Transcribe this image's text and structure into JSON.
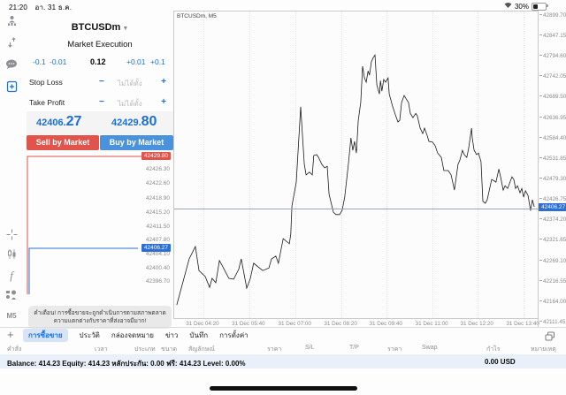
{
  "status_bar": {
    "time": "21:20",
    "date": "อา. 31 ธ.ค.",
    "battery_percent": "30%"
  },
  "sidebar": {
    "timeframe": "M5"
  },
  "trade_panel": {
    "symbol": "BTCUSDm",
    "execution_mode": "Market Execution",
    "volume": {
      "dec_big": "-0.1",
      "dec_small": "-0.01",
      "value": "0.12",
      "inc_small": "+0.01",
      "inc_big": "+0.1"
    },
    "stop_loss": {
      "label": "Stop Loss",
      "minus": "−",
      "placeholder": "ไม่ได้ตั้ง",
      "plus": "+"
    },
    "take_profit": {
      "label": "Take Profit",
      "minus": "−",
      "placeholder": "ไม่ได้ตั้ง",
      "plus": "+"
    },
    "sell_price": {
      "int": "42406.",
      "dec": "27"
    },
    "buy_price": {
      "int": "42429.",
      "dec": "80"
    },
    "sell_button": "Sell by Market",
    "buy_button": "Buy by Market",
    "warning_line1": "คำเตือน! การซื้อขายจะถูกดำเนินการตามสภาพตลาด",
    "warning_line2": "ความแตกต่างกับราคาที่ส่งอาจมีมาก!"
  },
  "tick_chart": {
    "scale": [
      {
        "label": "42429.80",
        "type": "ask"
      },
      {
        "label": "42426.30"
      },
      {
        "label": "42422.60"
      },
      {
        "label": "42418.90"
      },
      {
        "label": "42415.20"
      },
      {
        "label": "42411.50"
      },
      {
        "label": "42407.80"
      },
      {
        "label": "42406.27",
        "type": "bid"
      },
      {
        "label": "42404.10"
      },
      {
        "label": "42400.40"
      },
      {
        "label": "42396.70"
      }
    ],
    "ask_color": "#e0544b",
    "bid_color": "#2b6fd4"
  },
  "main_chart": {
    "title": "BTCUSDm, M5",
    "current_price": "42406.27",
    "y_axis_labels": [
      "42899.70",
      "42847.15",
      "42794.60",
      "42742.05",
      "42689.50",
      "42636.95",
      "42584.40",
      "42531.85",
      "42479.30",
      "42426.75",
      "42374.20",
      "42321.65",
      "42269.10",
      "42216.55",
      "42164.00",
      "42111.45"
    ],
    "x_axis_labels": [
      "31 Dec 04:20",
      "31 Dec 05:40",
      "31 Dec 07:00",
      "31 Dec 08:20",
      "31 Dec 09:40",
      "31 Dec 11:00",
      "31 Dec 12:20",
      "31 Dec 13:40"
    ],
    "chart_data": {
      "type": "line",
      "title": "BTCUSDm M5 price",
      "ylim": [
        42111.45,
        42899.7
      ],
      "current_price": 42406.27,
      "points": [
        [
          0.007,
          42158
        ],
        [
          0.041,
          42276
        ],
        [
          0.058,
          42308
        ],
        [
          0.068,
          42246
        ],
        [
          0.085,
          42231
        ],
        [
          0.097,
          42203
        ],
        [
          0.104,
          42226
        ],
        [
          0.114,
          42215
        ],
        [
          0.124,
          42272
        ],
        [
          0.131,
          42260
        ],
        [
          0.15,
          42226
        ],
        [
          0.163,
          42224
        ],
        [
          0.177,
          42249
        ],
        [
          0.184,
          42276
        ],
        [
          0.199,
          42201
        ],
        [
          0.209,
          42226
        ],
        [
          0.218,
          42265
        ],
        [
          0.243,
          42246
        ],
        [
          0.26,
          42253
        ],
        [
          0.267,
          42276
        ],
        [
          0.279,
          42283
        ],
        [
          0.286,
          42265
        ],
        [
          0.299,
          42328
        ],
        [
          0.316,
          42315
        ],
        [
          0.32,
          42340
        ],
        [
          0.323,
          42412
        ],
        [
          0.335,
          42473
        ],
        [
          0.347,
          42667
        ],
        [
          0.352,
          42594
        ],
        [
          0.357,
          42519
        ],
        [
          0.362,
          42492
        ],
        [
          0.371,
          42499
        ],
        [
          0.379,
          42492
        ],
        [
          0.383,
          42542
        ],
        [
          0.391,
          42544
        ],
        [
          0.396,
          42537
        ],
        [
          0.405,
          42519
        ],
        [
          0.413,
          42510
        ],
        [
          0.42,
          42514
        ],
        [
          0.425,
          42442
        ],
        [
          0.437,
          42396
        ],
        [
          0.444,
          42390
        ],
        [
          0.454,
          42390
        ],
        [
          0.461,
          42401
        ],
        [
          0.468,
          42435
        ],
        [
          0.478,
          42519
        ],
        [
          0.485,
          42587
        ],
        [
          0.49,
          42555
        ],
        [
          0.495,
          42578
        ],
        [
          0.5,
          42548
        ],
        [
          0.505,
          42632
        ],
        [
          0.512,
          42678
        ],
        [
          0.517,
          42771
        ],
        [
          0.522,
          42741
        ],
        [
          0.527,
          42730
        ],
        [
          0.532,
          42759
        ],
        [
          0.536,
          42748
        ],
        [
          0.541,
          42782
        ],
        [
          0.546,
          42793
        ],
        [
          0.551,
          42800
        ],
        [
          0.556,
          42723
        ],
        [
          0.563,
          42700
        ],
        [
          0.566,
          42734
        ],
        [
          0.57,
          42707
        ],
        [
          0.575,
          42737
        ],
        [
          0.58,
          42730
        ],
        [
          0.587,
          42741
        ],
        [
          0.59,
          42700
        ],
        [
          0.599,
          42669
        ],
        [
          0.607,
          42646
        ],
        [
          0.614,
          42628
        ],
        [
          0.619,
          42632
        ],
        [
          0.624,
          42678
        ],
        [
          0.631,
          42696
        ],
        [
          0.638,
          42685
        ],
        [
          0.643,
          42678
        ],
        [
          0.648,
          42650
        ],
        [
          0.655,
          42639
        ],
        [
          0.663,
          42650
        ],
        [
          0.667,
          42644
        ],
        [
          0.675,
          42612
        ],
        [
          0.682,
          42598
        ],
        [
          0.687,
          42612
        ],
        [
          0.694,
          42594
        ],
        [
          0.699,
          42578
        ],
        [
          0.709,
          42576
        ],
        [
          0.716,
          42567
        ],
        [
          0.723,
          42548
        ],
        [
          0.733,
          42537
        ],
        [
          0.74,
          42503
        ],
        [
          0.752,
          42503
        ],
        [
          0.76,
          42492
        ],
        [
          0.769,
          42453
        ],
        [
          0.772,
          42473
        ],
        [
          0.779,
          42519
        ],
        [
          0.784,
          42530
        ],
        [
          0.791,
          42555
        ],
        [
          0.796,
          42544
        ],
        [
          0.803,
          42537
        ],
        [
          0.808,
          42560
        ],
        [
          0.816,
          42612
        ],
        [
          0.818,
          42587
        ],
        [
          0.823,
          42555
        ],
        [
          0.83,
          42544
        ],
        [
          0.835,
          42548
        ],
        [
          0.842,
          42526
        ],
        [
          0.847,
          42424
        ],
        [
          0.854,
          42419
        ],
        [
          0.859,
          42428
        ],
        [
          0.867,
          42462
        ],
        [
          0.871,
          42480
        ],
        [
          0.879,
          42476
        ],
        [
          0.883,
          42473
        ],
        [
          0.891,
          42507
        ],
        [
          0.896,
          42485
        ],
        [
          0.903,
          42453
        ],
        [
          0.908,
          42464
        ],
        [
          0.915,
          42457
        ],
        [
          0.92,
          42469
        ],
        [
          0.927,
          42487
        ],
        [
          0.932,
          42480
        ],
        [
          0.937,
          42457
        ],
        [
          0.942,
          42464
        ],
        [
          0.949,
          42446
        ],
        [
          0.954,
          42457
        ],
        [
          0.959,
          42435
        ],
        [
          0.964,
          42451
        ],
        [
          0.971,
          42439
        ],
        [
          0.978,
          42400
        ],
        [
          0.983,
          42428
        ],
        [
          0.988,
          42410
        ]
      ]
    }
  },
  "bottom_panel": {
    "tabs": [
      {
        "label": "การซื้อขาย",
        "selected": true
      },
      {
        "label": "ประวัติ"
      },
      {
        "label": "กล่องจดหมาย"
      },
      {
        "label": "ข่าว"
      },
      {
        "label": "บันทึก"
      },
      {
        "label": "การตั้งค่า"
      }
    ],
    "plus": "+",
    "columns": [
      "คำสั่ง",
      "เวลา",
      "ประเภท",
      "ขนาด",
      "สัญลักษณ์",
      "ราคา",
      "S/L",
      "T/P",
      "ราคา",
      "Swap",
      "กำไร",
      "หมายเหตุ"
    ],
    "balance_line": "Balance: 414.23 Equity: 414.23 หลักประกัน: 0.00 ฟรี: 414.23 Level: 0.00%",
    "profit": "0.00  USD"
  }
}
